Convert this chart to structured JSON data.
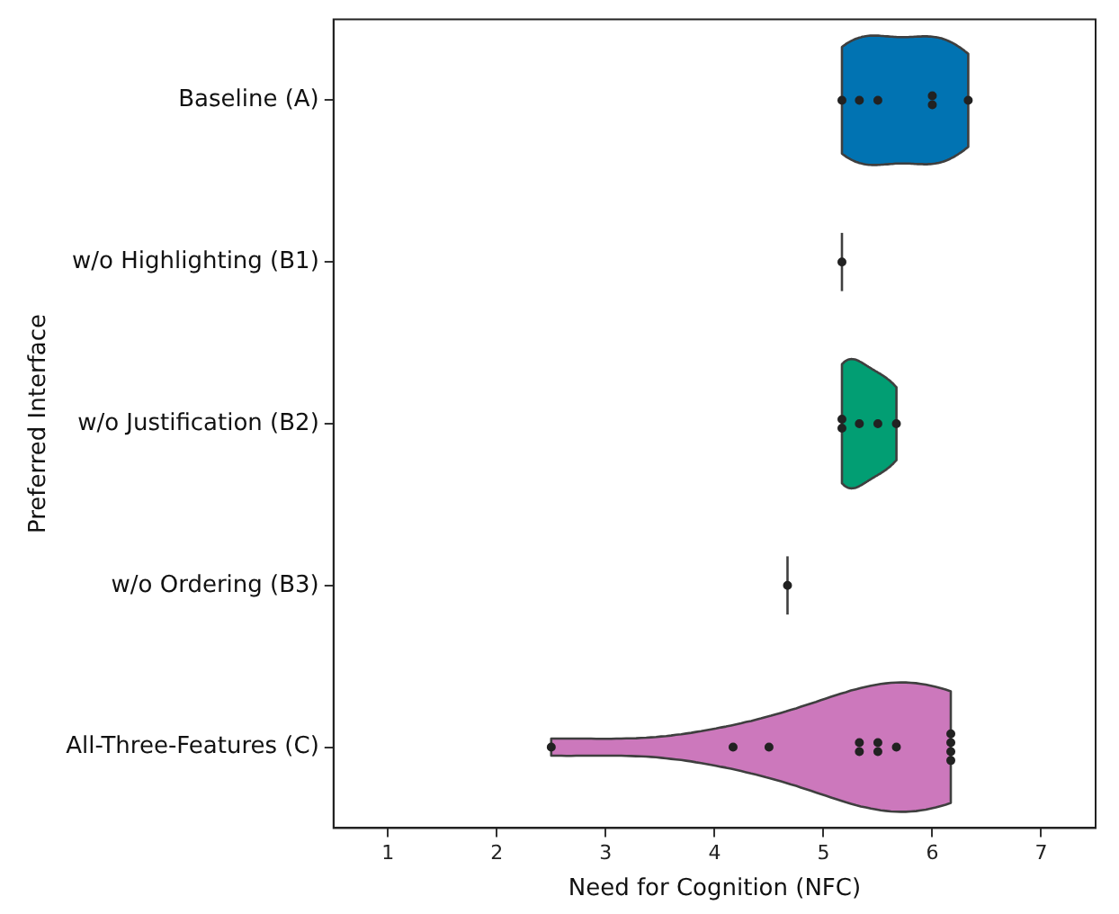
{
  "chart_data": {
    "type": "scatter",
    "orientation": "horizontal",
    "xlabel": "Need for Cognition (NFC)",
    "ylabel": "Preferred Interface",
    "categories": [
      "Baseline (A)",
      "w/o Highlighting (B1)",
      "w/o Justification (B2)",
      "w/o Ordering (B3)",
      "All-Three-Features (C)"
    ],
    "xlim": [
      0.5,
      7.5
    ],
    "xticks": [
      1,
      2,
      3,
      4,
      5,
      6,
      7
    ],
    "grid": false,
    "legend": false,
    "marker": "circle",
    "series": [
      {
        "color": "#222222",
        "x": [
          "Baseline (A)",
          "Baseline (A)",
          "Baseline (A)",
          "Baseline (A)",
          "Baseline (A)",
          "Baseline (A)"
        ],
        "values": [
          5.17,
          5.33,
          5.5,
          6.0,
          6.0,
          6.33
        ]
      },
      {
        "color": "#222222",
        "x": [
          "w/o Highlighting (B1)"
        ],
        "values": [
          5.17
        ]
      },
      {
        "color": "#222222",
        "x": [
          "w/o Justification (B2)",
          "w/o Justification (B2)",
          "w/o Justification (B2)",
          "w/o Justification (B2)",
          "w/o Justification (B2)"
        ],
        "values": [
          5.17,
          5.17,
          5.33,
          5.5,
          5.67
        ]
      },
      {
        "color": "#222222",
        "x": [
          "w/o Ordering (B3)"
        ],
        "values": [
          4.67
        ]
      },
      {
        "color": "#222222",
        "x": [
          "All-Three-Features (C)",
          "All-Three-Features (C)",
          "All-Three-Features (C)",
          "All-Three-Features (C)",
          "All-Three-Features (C)",
          "All-Three-Features (C)",
          "All-Three-Features (C)",
          "All-Three-Features (C)",
          "All-Three-Features (C)",
          "All-Three-Features (C)",
          "All-Three-Features (C)",
          "All-Three-Features (C)"
        ],
        "values": [
          2.5,
          4.17,
          4.5,
          5.33,
          5.33,
          5.5,
          5.5,
          5.67,
          6.17,
          6.17,
          6.17,
          6.17
        ]
      }
    ]
  }
}
